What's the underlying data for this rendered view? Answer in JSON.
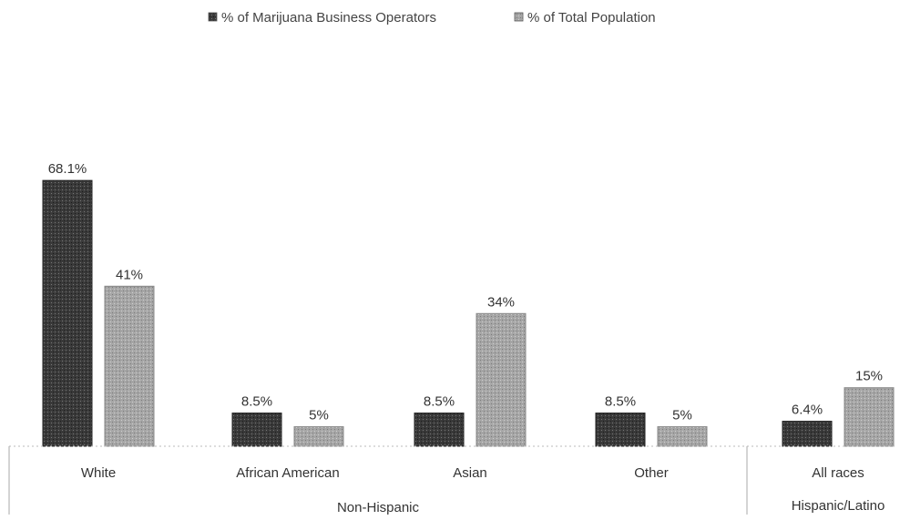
{
  "chart_data": {
    "type": "bar",
    "categories": [
      "White",
      "African American",
      "Asian",
      "Other",
      "All races"
    ],
    "groups": [
      {
        "label": "Non-Hispanic",
        "categories": [
          "White",
          "African American",
          "Asian",
          "Other"
        ]
      },
      {
        "label": "Hispanic/Latino",
        "categories": [
          "All races"
        ]
      }
    ],
    "series": [
      {
        "name": "% of Marijuana Business Operators",
        "color": "#3a3a3a",
        "values": [
          68.1,
          8.5,
          8.5,
          8.5,
          6.4
        ],
        "labels": [
          "68.1%",
          "8.5%",
          "8.5%",
          "8.5%",
          "6.4%"
        ]
      },
      {
        "name": "% of Total Population",
        "color": "#a6a6a6",
        "values": [
          41,
          5,
          34,
          5,
          15
        ],
        "labels": [
          "41%",
          "5%",
          "34%",
          "5%",
          "15%"
        ]
      }
    ],
    "ylim": [
      0,
      70
    ],
    "legend_position": "top",
    "grid": false
  }
}
